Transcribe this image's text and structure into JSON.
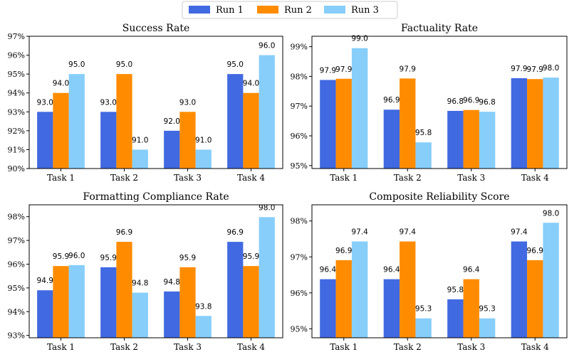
{
  "legend": {
    "placement": "top-center",
    "items": [
      {
        "label": "Run 1",
        "color": "#4169E1"
      },
      {
        "label": "Run 2",
        "color": "#FF8C00"
      },
      {
        "label": "Run 3",
        "color": "#87CEFA"
      }
    ]
  },
  "chart_data": [
    {
      "type": "bar",
      "title": "Success Rate",
      "categories": [
        "Task 1",
        "Task 2",
        "Task 3",
        "Task 4"
      ],
      "series": [
        {
          "name": "Run 1",
          "values": [
            93.0,
            93.0,
            92.0,
            95.0
          ],
          "labels": [
            "93.0",
            "93.0",
            "92.0",
            "95.0"
          ]
        },
        {
          "name": "Run 2",
          "values": [
            94.0,
            95.0,
            93.0,
            94.0
          ],
          "labels": [
            "94.0",
            "95.0",
            "93.0",
            "94.0"
          ]
        },
        {
          "name": "Run 3",
          "values": [
            95.0,
            91.0,
            91.0,
            96.0
          ],
          "labels": [
            "95.0",
            "91.0",
            "91.0",
            "96.0"
          ]
        }
      ],
      "ylim": [
        90,
        97
      ],
      "yticks": [
        90,
        91,
        92,
        93,
        94,
        95,
        96,
        97
      ],
      "ytick_labels": [
        "90%",
        "91%",
        "92%",
        "93%",
        "94%",
        "95%",
        "96%",
        "97%"
      ]
    },
    {
      "type": "bar",
      "title": "Factuality Rate",
      "categories": [
        "Task 1",
        "Task 2",
        "Task 3",
        "Task 4"
      ],
      "series": [
        {
          "name": "Run 1",
          "values": [
            97.88,
            96.88,
            96.84,
            97.94
          ],
          "labels": [
            "97.9",
            "96.9",
            "96.8",
            "97.9"
          ]
        },
        {
          "name": "Run 2",
          "values": [
            97.92,
            97.93,
            96.87,
            97.91
          ],
          "labels": [
            "97.9",
            "97.9",
            "96.9",
            "97.9"
          ]
        },
        {
          "name": "Run 3",
          "values": [
            98.95,
            95.78,
            96.81,
            97.96
          ],
          "labels": [
            "99.0",
            "95.8",
            "96.8",
            "98.0"
          ]
        }
      ],
      "ylim": [
        94.9,
        99.35
      ],
      "yticks": [
        95,
        96,
        97,
        98,
        99
      ],
      "ytick_labels": [
        "95%",
        "96%",
        "97%",
        "98%",
        "99%"
      ]
    },
    {
      "type": "bar",
      "title": "Formatting Compliance Rate",
      "categories": [
        "Task 1",
        "Task 2",
        "Task 3",
        "Task 4"
      ],
      "series": [
        {
          "name": "Run 1",
          "values": [
            94.9,
            95.87,
            94.85,
            96.94
          ],
          "labels": [
            "94.9",
            "95.9",
            "94.8",
            "96.9"
          ]
        },
        {
          "name": "Run 2",
          "values": [
            95.92,
            96.94,
            95.87,
            95.92
          ],
          "labels": [
            "95.9",
            "96.9",
            "95.9",
            "95.9"
          ]
        },
        {
          "name": "Run 3",
          "values": [
            95.96,
            94.8,
            93.82,
            97.98
          ],
          "labels": [
            "96.0",
            "94.8",
            "93.8",
            "98.0"
          ]
        }
      ],
      "ylim": [
        92.9,
        98.5
      ],
      "yticks": [
        93,
        94,
        95,
        96,
        97,
        98
      ],
      "ytick_labels": [
        "93%",
        "94%",
        "95%",
        "96%",
        "97%",
        "98%"
      ]
    },
    {
      "type": "bar",
      "title": "Composite Reliability Score",
      "categories": [
        "Task 1",
        "Task 2",
        "Task 3",
        "Task 4"
      ],
      "series": [
        {
          "name": "Run 1",
          "values": [
            96.38,
            96.38,
            95.82,
            97.43
          ],
          "labels": [
            "96.4",
            "96.4",
            "95.8",
            "97.4"
          ]
        },
        {
          "name": "Run 2",
          "values": [
            96.91,
            97.43,
            96.38,
            96.91
          ],
          "labels": [
            "96.9",
            "97.4",
            "96.4",
            "96.9"
          ]
        },
        {
          "name": "Run 3",
          "values": [
            97.43,
            95.29,
            95.29,
            97.95
          ],
          "labels": [
            "97.4",
            "95.3",
            "95.3",
            "98.0"
          ]
        }
      ],
      "ylim": [
        94.75,
        98.45
      ],
      "yticks": [
        95,
        96,
        97,
        98
      ],
      "ytick_labels": [
        "95%",
        "96%",
        "97%",
        "98%"
      ]
    }
  ]
}
